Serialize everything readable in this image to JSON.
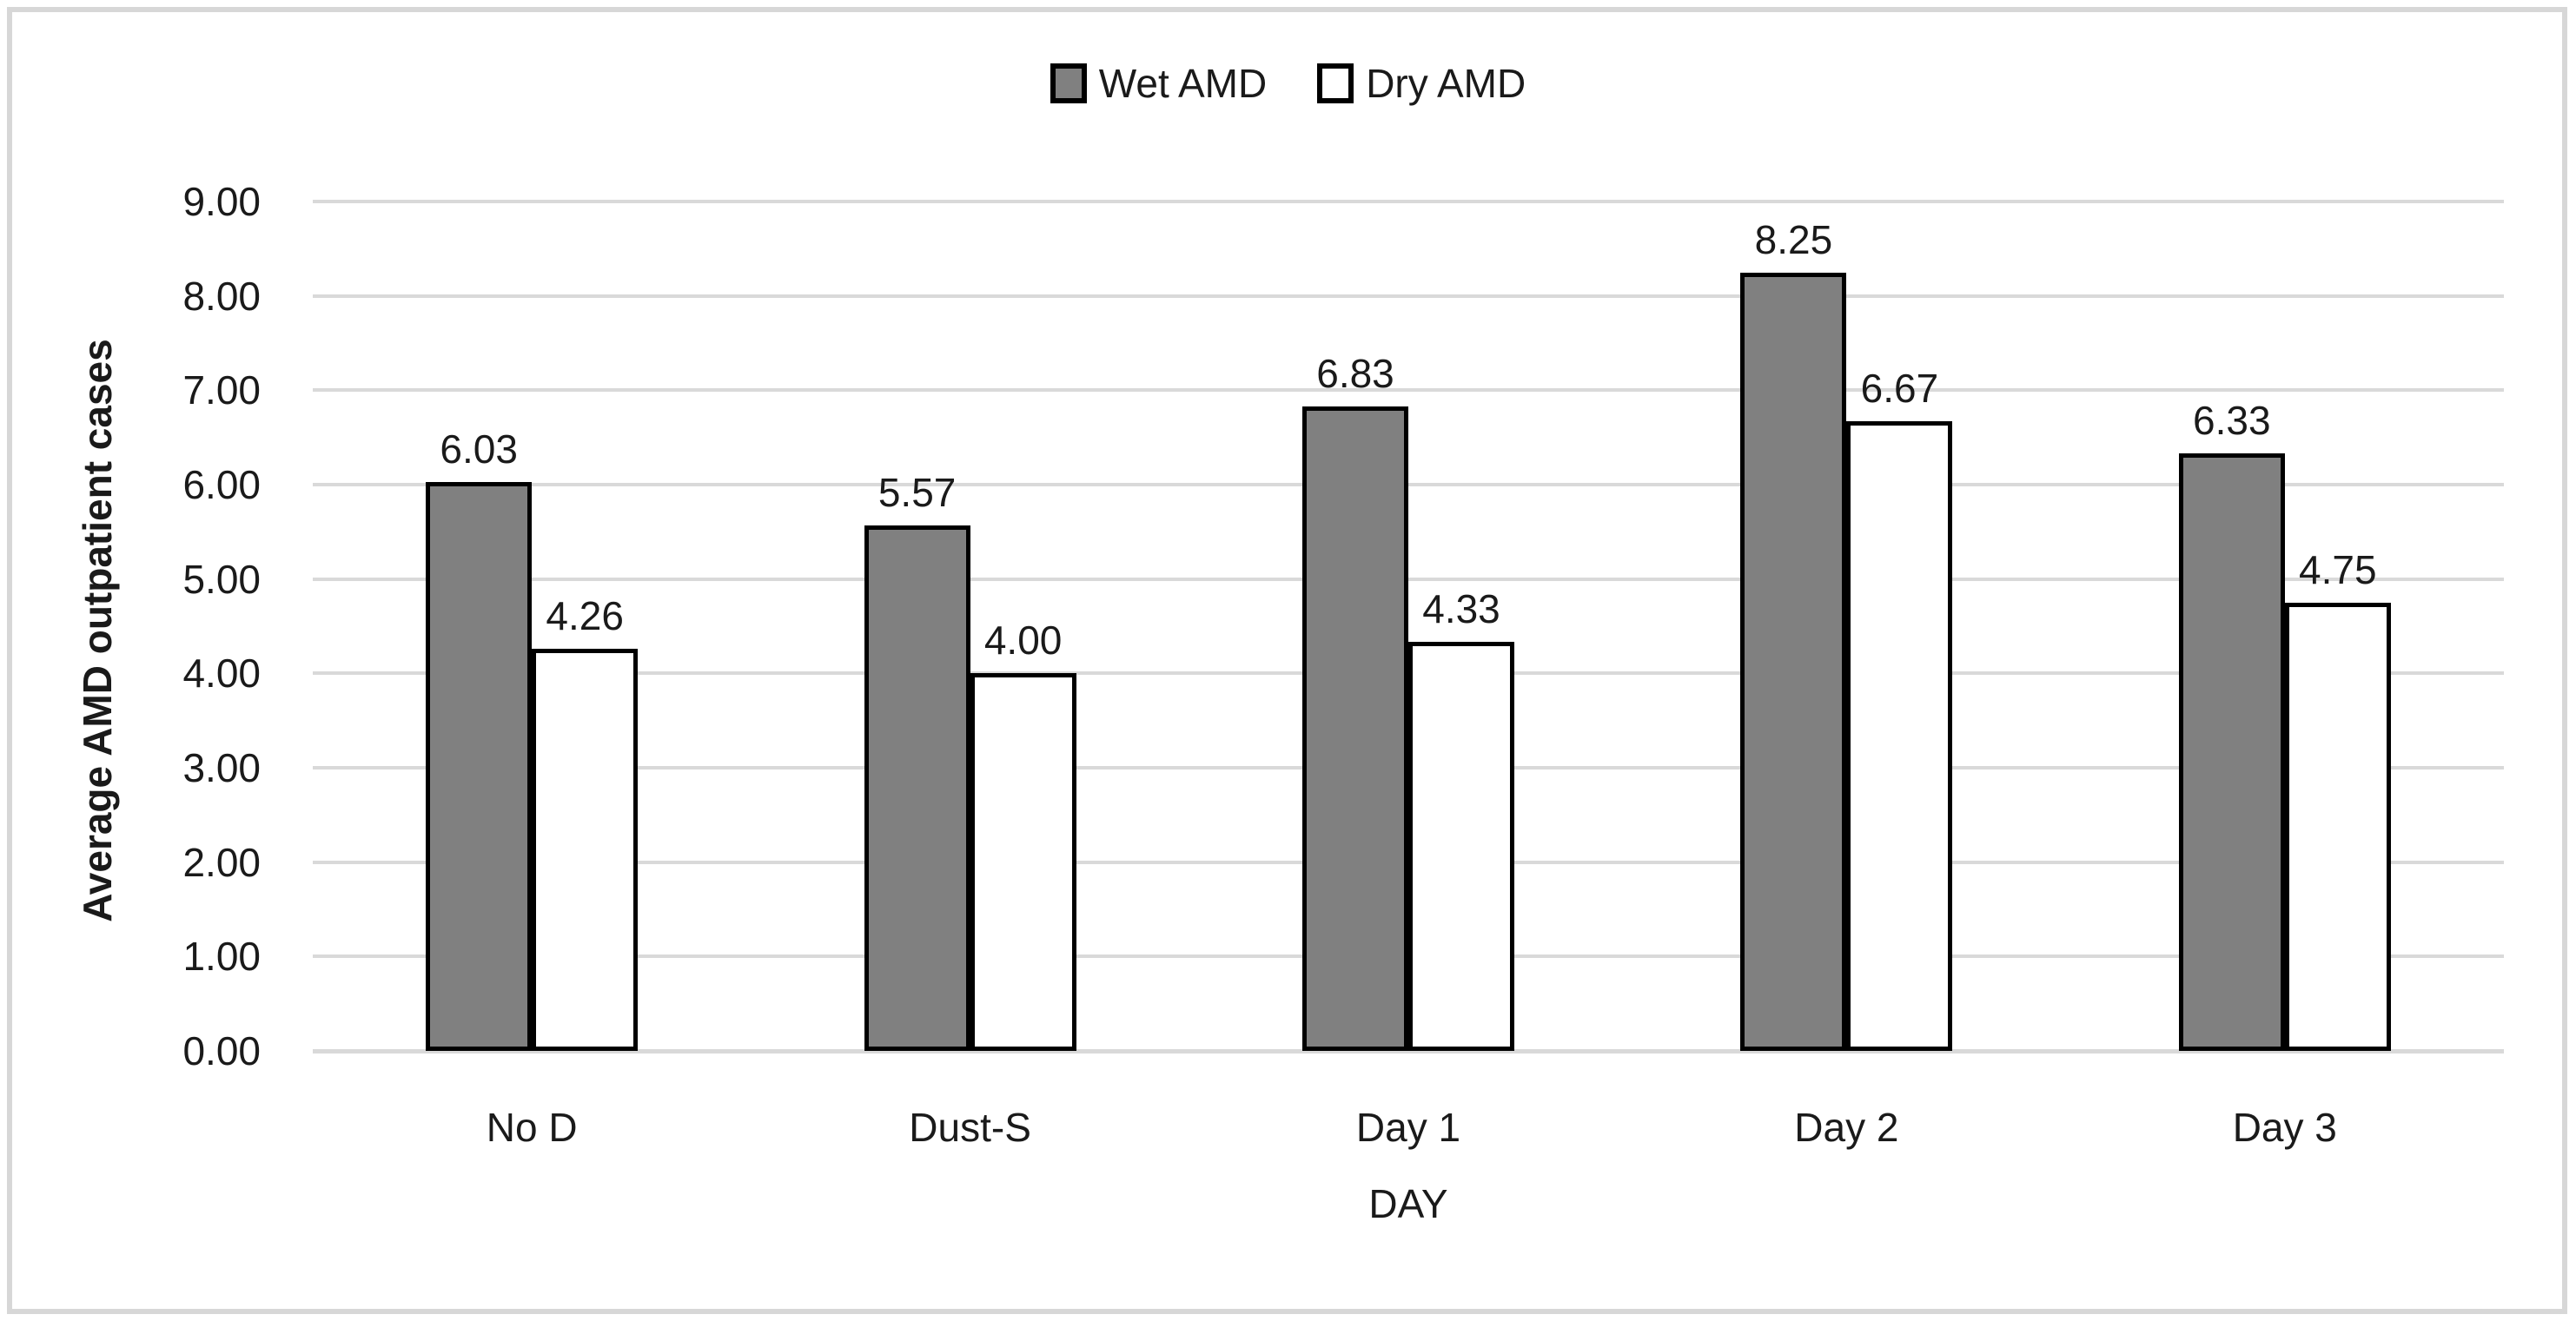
{
  "chart_data": {
    "type": "bar",
    "title": "",
    "categories": [
      "No D",
      "Dust-S",
      "Day 1",
      "Day 2",
      "Day 3"
    ],
    "series": [
      {
        "name": "Wet AMD",
        "fill": "#808080",
        "values": [
          6.03,
          5.57,
          6.83,
          8.25,
          6.33
        ],
        "value_labels": [
          "6.03",
          "5.57",
          "6.83",
          "8.25",
          "6.33"
        ]
      },
      {
        "name": "Dry AMD",
        "fill": "#ffffff",
        "values": [
          4.26,
          4.0,
          4.33,
          6.67,
          4.75
        ],
        "value_labels": [
          "4.26",
          "4.00",
          "4.33",
          "6.67",
          "4.75"
        ]
      }
    ],
    "xlabel": "DAY",
    "ylabel": "Average AMD outpatient cases",
    "ylim": [
      0,
      9
    ],
    "ytick_step": 1,
    "ytick_labels": [
      "0.00",
      "1.00",
      "2.00",
      "3.00",
      "4.00",
      "5.00",
      "6.00",
      "7.00",
      "8.00",
      "9.00"
    ],
    "grid": true,
    "legend_position": "top-center",
    "data_labels_position": "outside-end"
  },
  "colors": {
    "bar_border": "#000000",
    "gridline": "#d9d9d9",
    "chart_border": "#d7d7d7",
    "text": "#1a1a1a",
    "wet_fill": "#808080",
    "dry_fill": "#ffffff",
    "background": "#ffffff"
  }
}
